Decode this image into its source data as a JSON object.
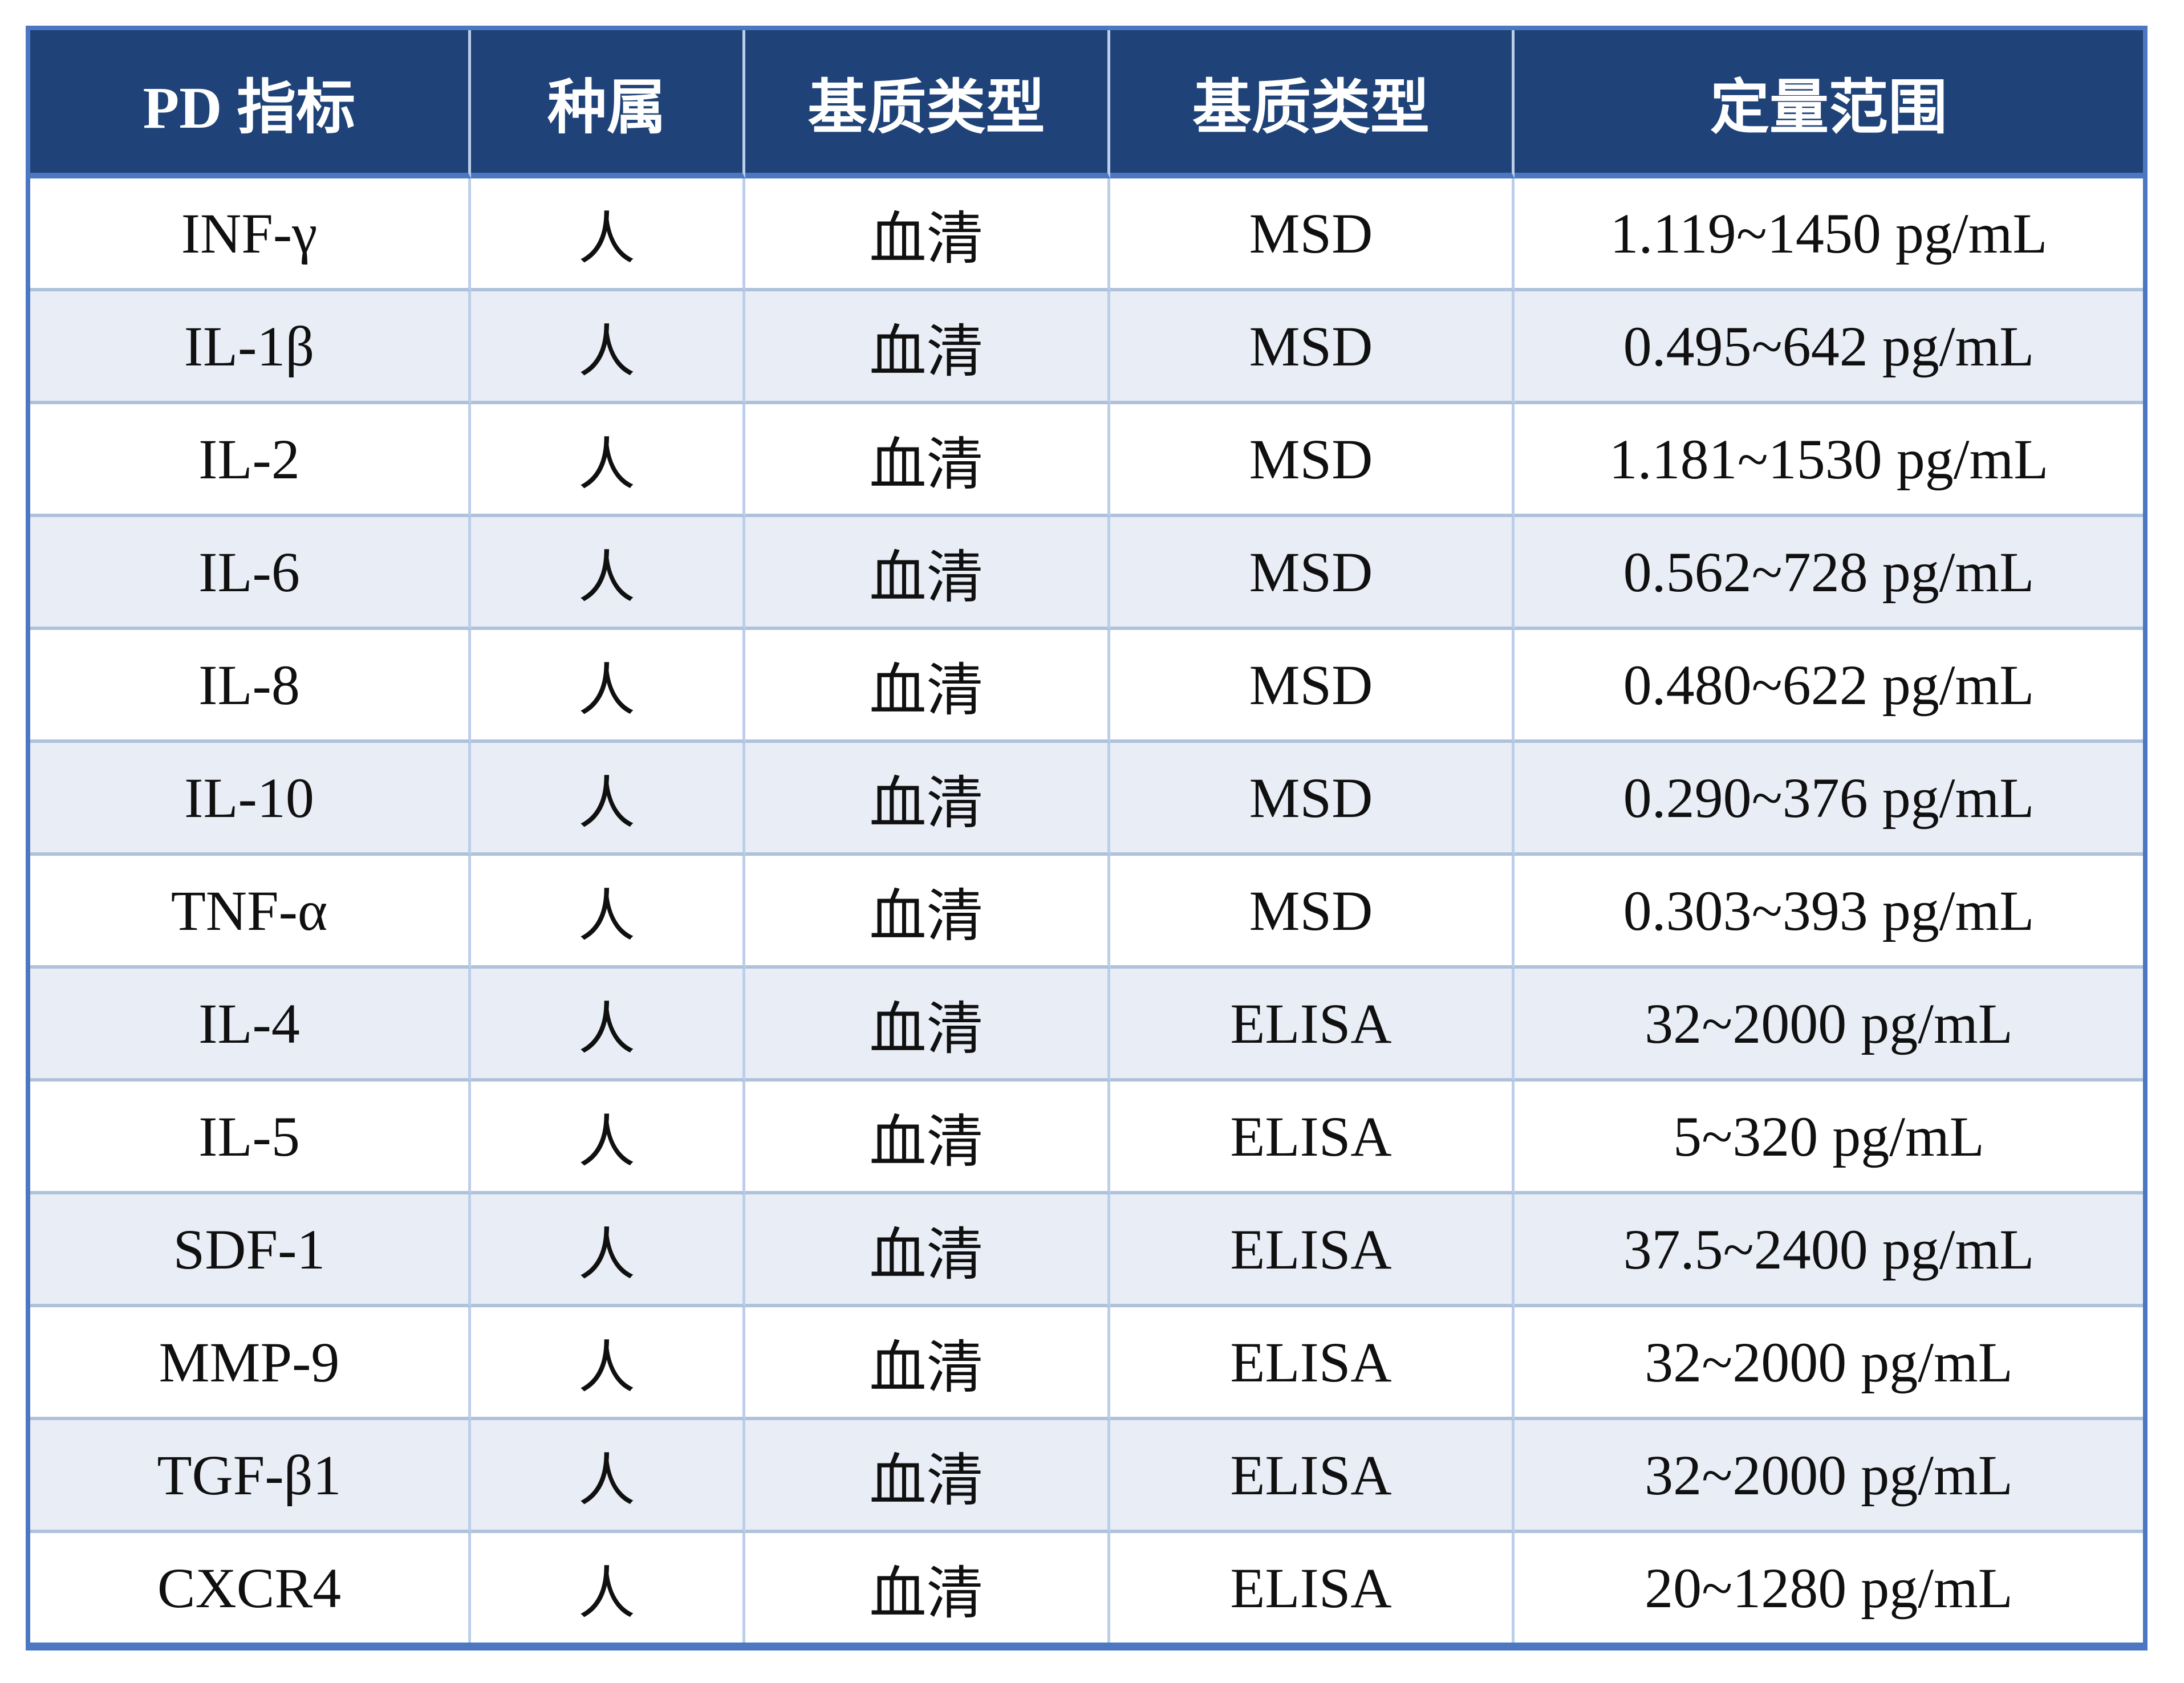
{
  "page": {
    "background_color": "#FFFFFF",
    "language": "zh-CN"
  },
  "table": {
    "headers": [
      "PD 指标",
      "种属",
      "基质类型",
      "基质类型",
      "定量范围"
    ],
    "rows": [
      {
        "pd_indicator": "INF-γ",
        "species": "人",
        "matrix_type": "血清",
        "platform": "MSD",
        "quant_range": "1.119~1450 pg/mL"
      },
      {
        "pd_indicator": "IL-1β",
        "species": "人",
        "matrix_type": "血清",
        "platform": "MSD",
        "quant_range": "0.495~642 pg/mL"
      },
      {
        "pd_indicator": "IL-2",
        "species": "人",
        "matrix_type": "血清",
        "platform": "MSD",
        "quant_range": "1.181~1530 pg/mL"
      },
      {
        "pd_indicator": "IL-6",
        "species": "人",
        "matrix_type": "血清",
        "platform": "MSD",
        "quant_range": "0.562~728 pg/mL"
      },
      {
        "pd_indicator": "IL-8",
        "species": "人",
        "matrix_type": "血清",
        "platform": "MSD",
        "quant_range": "0.480~622 pg/mL"
      },
      {
        "pd_indicator": "IL-10",
        "species": "人",
        "matrix_type": "血清",
        "platform": "MSD",
        "quant_range": "0.290~376 pg/mL"
      },
      {
        "pd_indicator": "TNF-α",
        "species": "人",
        "matrix_type": "血清",
        "platform": "MSD",
        "quant_range": "0.303~393 pg/mL"
      },
      {
        "pd_indicator": "IL-4",
        "species": "人",
        "matrix_type": "血清",
        "platform": "ELISA",
        "quant_range": "32~2000 pg/mL"
      },
      {
        "pd_indicator": "IL-5",
        "species": "人",
        "matrix_type": "血清",
        "platform": "ELISA",
        "quant_range": "5~320 pg/mL"
      },
      {
        "pd_indicator": "SDF-1",
        "species": "人",
        "matrix_type": "血清",
        "platform": "ELISA",
        "quant_range": "37.5~2400 pg/mL"
      },
      {
        "pd_indicator": "MMP-9",
        "species": "人",
        "matrix_type": "血清",
        "platform": "ELISA",
        "quant_range": "32~2000 pg/mL"
      },
      {
        "pd_indicator": "TGF-β1",
        "species": "人",
        "matrix_type": "血清",
        "platform": "ELISA",
        "quant_range": "32~2000 pg/mL"
      },
      {
        "pd_indicator": "CXCR4",
        "species": "人",
        "matrix_type": "血清",
        "platform": "ELISA",
        "quant_range": "20~1280 pg/mL"
      }
    ],
    "colors": {
      "header_background": "#1F4378",
      "header_text": "#FFFFFF",
      "outer_border": "#4C78C2",
      "vertical_divider": "#BDCEEA",
      "horizontal_divider": "#AFC2DC",
      "banded_row_background": "#E9EDF6",
      "body_text": "#101010"
    }
  }
}
